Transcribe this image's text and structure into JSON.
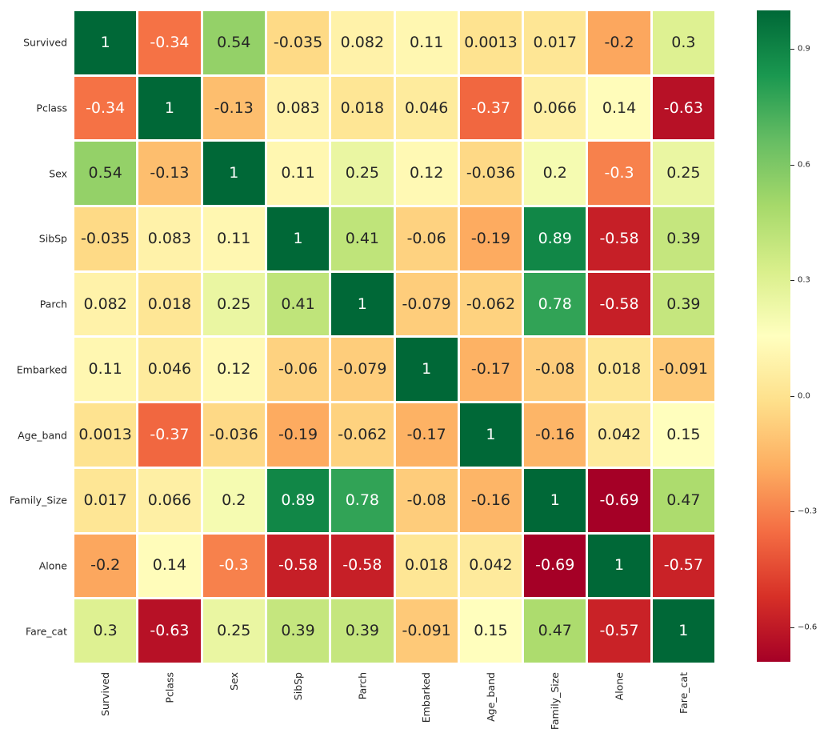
{
  "figure": {
    "background": "#ffffff"
  },
  "chart_data": {
    "type": "heatmap",
    "title": "",
    "xlabel": "",
    "ylabel": "",
    "legend_position": "colorbar-right",
    "grid": false,
    "categories": [
      "Survived",
      "Pclass",
      "Sex",
      "SibSp",
      "Parch",
      "Embarked",
      "Age_band",
      "Family_Size",
      "Alone",
      "Fare_cat"
    ],
    "matrix": [
      [
        1,
        -0.34,
        0.54,
        -0.035,
        0.082,
        0.11,
        0.0013,
        0.017,
        -0.2,
        0.3
      ],
      [
        -0.34,
        1,
        -0.13,
        0.083,
        0.018,
        0.046,
        -0.37,
        0.066,
        0.14,
        -0.63
      ],
      [
        0.54,
        -0.13,
        1,
        0.11,
        0.25,
        0.12,
        -0.036,
        0.2,
        -0.3,
        0.25
      ],
      [
        -0.035,
        0.083,
        0.11,
        1,
        0.41,
        -0.06,
        -0.19,
        0.89,
        -0.58,
        0.39
      ],
      [
        0.082,
        0.018,
        0.25,
        0.41,
        1,
        -0.079,
        -0.062,
        0.78,
        -0.58,
        0.39
      ],
      [
        0.11,
        0.046,
        0.12,
        -0.06,
        -0.079,
        1,
        -0.17,
        -0.08,
        0.018,
        -0.091
      ],
      [
        0.0013,
        -0.37,
        -0.036,
        -0.19,
        -0.062,
        -0.17,
        1,
        -0.16,
        0.042,
        0.15
      ],
      [
        0.017,
        0.066,
        0.2,
        0.89,
        0.78,
        -0.08,
        -0.16,
        1,
        -0.69,
        0.47
      ],
      [
        -0.2,
        0.14,
        -0.3,
        -0.58,
        -0.58,
        0.018,
        0.042,
        -0.69,
        1,
        -0.57
      ],
      [
        0.3,
        -0.63,
        0.25,
        0.39,
        0.39,
        -0.091,
        0.15,
        0.47,
        -0.57,
        1
      ]
    ],
    "matrix_display": [
      [
        "1",
        "-0.34",
        "0.54",
        "-0.035",
        "0.082",
        "0.11",
        "0.0013",
        "0.017",
        "-0.2",
        "0.3"
      ],
      [
        "-0.34",
        "1",
        "-0.13",
        "0.083",
        "0.018",
        "0.046",
        "-0.37",
        "0.066",
        "0.14",
        "-0.63"
      ],
      [
        "0.54",
        "-0.13",
        "1",
        "0.11",
        "0.25",
        "0.12",
        "-0.036",
        "0.2",
        "-0.3",
        "0.25"
      ],
      [
        "-0.035",
        "0.083",
        "0.11",
        "1",
        "0.41",
        "-0.06",
        "-0.19",
        "0.89",
        "-0.58",
        "0.39"
      ],
      [
        "0.082",
        "0.018",
        "0.25",
        "0.41",
        "1",
        "-0.079",
        "-0.062",
        "0.78",
        "-0.58",
        "0.39"
      ],
      [
        "0.11",
        "0.046",
        "0.12",
        "-0.06",
        "-0.079",
        "1",
        "-0.17",
        "-0.08",
        "0.018",
        "-0.091"
      ],
      [
        "0.0013",
        "-0.37",
        "-0.036",
        "-0.19",
        "-0.062",
        "-0.17",
        "1",
        "-0.16",
        "0.042",
        "0.15"
      ],
      [
        "0.017",
        "0.066",
        "0.2",
        "0.89",
        "0.78",
        "-0.08",
        "-0.16",
        "1",
        "-0.69",
        "0.47"
      ],
      [
        "-0.2",
        "0.14",
        "-0.3",
        "-0.58",
        "-0.58",
        "0.018",
        "0.042",
        "-0.69",
        "1",
        "-0.57"
      ],
      [
        "0.3",
        "-0.63",
        "0.25",
        "0.39",
        "0.39",
        "-0.091",
        "0.15",
        "0.47",
        "-0.57",
        "1"
      ]
    ],
    "colormap": "RdYlGn",
    "vmin": -0.69,
    "vmax": 1,
    "colorbar": {
      "tick_labels": [
        "0.9",
        "0.6",
        "0.3",
        "0.0",
        "−0.3",
        "−0.6"
      ],
      "tick_values": [
        0.9,
        0.6,
        0.3,
        0.0,
        -0.3,
        -0.6
      ]
    },
    "colors": {
      "annotation_dark": "#262626",
      "annotation_light": "#ffffff",
      "gridline": "#ffffff",
      "background": "#ffffff",
      "rdylgn_anchors": [
        "#a50026",
        "#d73027",
        "#f46d43",
        "#fdae61",
        "#fee08b",
        "#ffffbf",
        "#d9ef8b",
        "#a6d96a",
        "#66bd63",
        "#1a9850",
        "#006837"
      ]
    }
  }
}
